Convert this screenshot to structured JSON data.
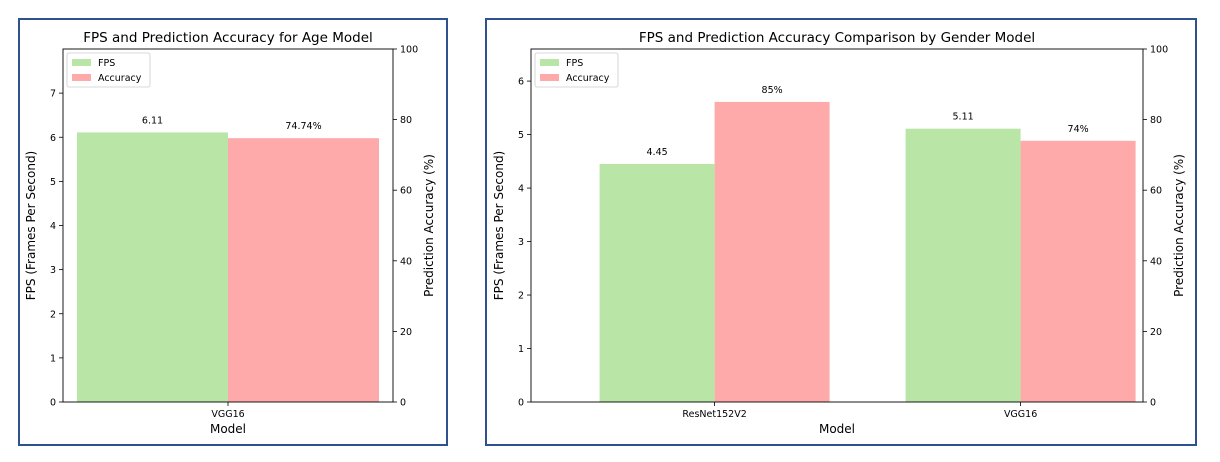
{
  "colors": {
    "fps": "#b9e6a6",
    "accuracy": "#ffaaaa",
    "frame": "#2f528f"
  },
  "chart_data": [
    {
      "type": "bar",
      "title": "FPS and Prediction Accuracy for Age Model",
      "xlabel": "Model",
      "ylabel": "FPS (Frames Per Second)",
      "y2label": "Prediction Accuracy (%)",
      "categories": [
        "VGG16"
      ],
      "ylim": [
        0,
        8
      ],
      "y2lim": [
        0,
        100
      ],
      "yticks": [
        "0",
        "1",
        "2",
        "3",
        "4",
        "5",
        "6",
        "7"
      ],
      "y2ticks": [
        "0",
        "20",
        "40",
        "60",
        "80",
        "100"
      ],
      "legend": {
        "position": "top-left",
        "entries": [
          "FPS",
          "Accuracy"
        ]
      },
      "grid": false,
      "series": [
        {
          "name": "FPS",
          "axis": "left",
          "values": [
            6.11
          ],
          "labels": [
            "6.11"
          ]
        },
        {
          "name": "Accuracy",
          "axis": "right",
          "values": [
            74.74
          ],
          "labels": [
            "74.74%"
          ]
        }
      ]
    },
    {
      "type": "bar",
      "title": "FPS and Prediction Accuracy Comparison by Gender Model",
      "xlabel": "Model",
      "ylabel": "FPS (Frames Per Second)",
      "y2label": "Prediction Accuracy (%)",
      "categories": [
        "ResNet152V2",
        "VGG16"
      ],
      "ylim": [
        0,
        6.6
      ],
      "y2lim": [
        0,
        100
      ],
      "yticks": [
        "0",
        "1",
        "2",
        "3",
        "4",
        "5",
        "6"
      ],
      "y2ticks": [
        "0",
        "20",
        "40",
        "60",
        "80",
        "100"
      ],
      "legend": {
        "position": "top-left",
        "entries": [
          "FPS",
          "Accuracy"
        ]
      },
      "grid": false,
      "series": [
        {
          "name": "FPS",
          "axis": "left",
          "values": [
            4.45,
            5.11
          ],
          "labels": [
            "4.45",
            "5.11"
          ]
        },
        {
          "name": "Accuracy",
          "axis": "right",
          "values": [
            85,
            74
          ],
          "labels": [
            "85%",
            "74%"
          ]
        }
      ]
    }
  ]
}
